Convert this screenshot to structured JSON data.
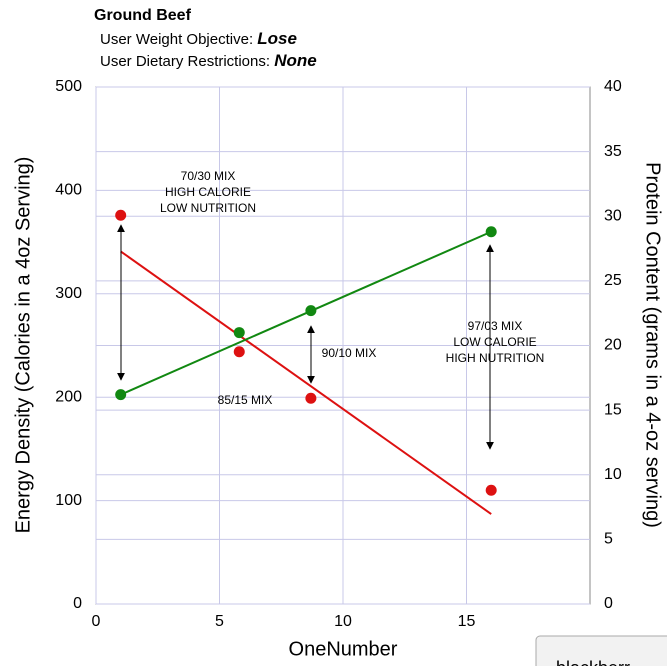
{
  "chart_data": {
    "type": "scatter",
    "title": "Ground Beef",
    "subtitle_lines": [
      {
        "label": "User Weight Objective: ",
        "value": "Lose"
      },
      {
        "label": "User Dietary Restrictions: ",
        "value": "None"
      }
    ],
    "x_label": "OneNumber",
    "y_label": "Energy Density (Calories in a 4oz Serving)",
    "y2_label": "Protein Content (grams in a 4-oz serving)",
    "xlim": [
      0,
      20
    ],
    "xticks": [
      0,
      5,
      10,
      15
    ],
    "ylim": [
      0,
      500
    ],
    "yticks": [
      0,
      100,
      200,
      300,
      400,
      500
    ],
    "y2lim": [
      0,
      40
    ],
    "y2ticks": [
      0,
      5,
      10,
      15,
      20,
      25,
      30,
      35,
      40
    ],
    "grid": true,
    "series": [
      {
        "color": "#dd1111",
        "x": [
          1,
          5.8,
          8.7,
          16
        ],
        "values": [
          376,
          244,
          199,
          110
        ]
      },
      {
        "color": "#118811",
        "x": [
          1,
          5.8,
          8.7,
          16
        ],
        "values": [
          16.2,
          21.0,
          22.7,
          28.8
        ],
        "axis": "y2"
      }
    ],
    "trend_lines": [
      {
        "color": "#dd1111",
        "x": [
          1,
          16
        ],
        "values": [
          341,
          87
        ]
      },
      {
        "color": "#118811",
        "x": [
          1,
          16
        ],
        "values": [
          16.2,
          28.8
        ],
        "axis": "y2"
      }
    ],
    "annotations": [
      [
        "70/30 MIX",
        "HIGH CALORIE",
        "LOW NUTRITION"
      ],
      [
        "85/15 MIX"
      ],
      [
        "90/10 MIX"
      ],
      [
        "97/03 MIX",
        "LOW CALORIE",
        "HIGH NUTRITION"
      ]
    ],
    "overlay_text": "blackberr"
  }
}
